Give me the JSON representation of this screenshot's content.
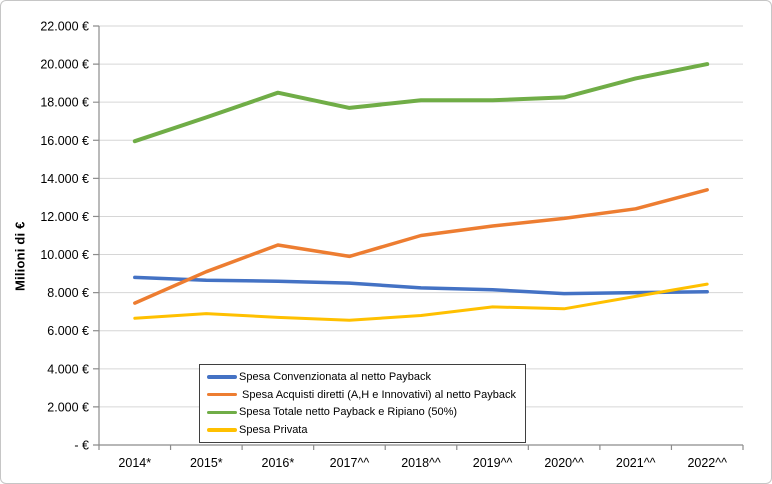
{
  "chart": {
    "colors": {
      "blue": "#4472C4",
      "orange": "#ED7D31",
      "green": "#70AD47",
      "yellow": "#FFC000",
      "gridline": "#D6D6D6",
      "axis": "#8C8C8C",
      "text": "#000000",
      "frame_border": "#C6C6C6",
      "legend_border": "#3F3F3F"
    }
  },
  "chart_data": {
    "type": "line",
    "title": "",
    "xlabel": "",
    "ylabel": "Milioni di €",
    "ylim": [
      0,
      22000
    ],
    "y_tick_step": 2000,
    "grid": true,
    "legend_position": "inside-bottom-left",
    "y_tick_labels_top_down": [
      "22.000 €",
      "20.000 €",
      "18.000 €",
      "16.000 €",
      "14.000 €",
      "12.000 €",
      "10.000 €",
      "8.000 €",
      "6.000 €",
      "4.000 €",
      "2.000 €",
      "-  €"
    ],
    "categories": [
      "2014*",
      "2015*",
      "2016*",
      "2017^^",
      "2018^^",
      "2019^^",
      "2020^^",
      "2021^^",
      "2022^^"
    ],
    "series": [
      {
        "name": "Spesa Convenzionata al netto Payback",
        "color": "#4472C4",
        "values": [
          8800,
          8650,
          8600,
          8500,
          8250,
          8150,
          7950,
          8000,
          8050
        ]
      },
      {
        "name": " Spesa Acquisti diretti (A,H e Innovativi) al netto Payback",
        "color": "#ED7D31",
        "values": [
          7450,
          9100,
          10500,
          9900,
          11000,
          11500,
          11900,
          12400,
          13400
        ]
      },
      {
        "name": "Spesa Totale netto Payback e Ripiano (50%)",
        "color": "#70AD47",
        "values": [
          15950,
          17200,
          18500,
          17700,
          18100,
          18100,
          18250,
          19250,
          20000
        ]
      },
      {
        "name": "Spesa Privata",
        "color": "#FFC000",
        "values": [
          6650,
          6900,
          6700,
          6550,
          6800,
          7250,
          7150,
          7800,
          8450
        ]
      }
    ]
  }
}
